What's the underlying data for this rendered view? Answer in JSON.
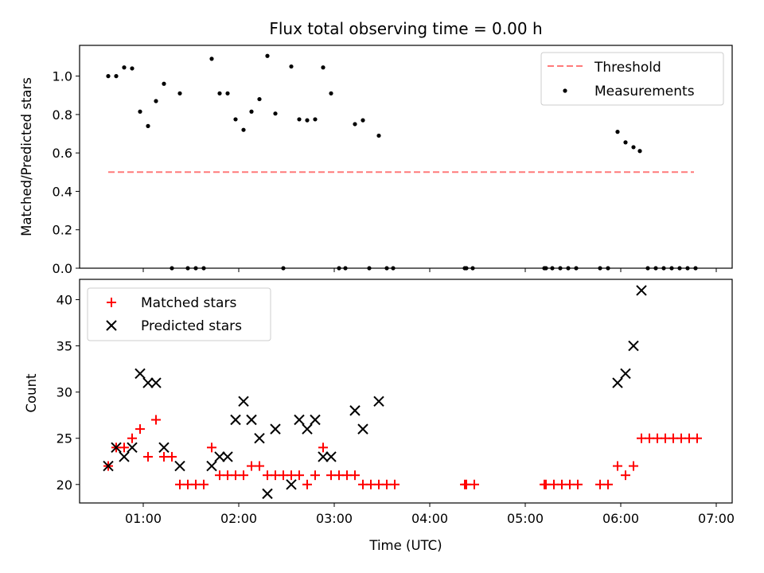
{
  "chart_data": [
    {
      "type": "scatter",
      "title": "Flux total observing time = 0.00 h",
      "xlabel": "",
      "ylabel": "Matched/Predicted stars",
      "ylim": [
        0,
        1.16
      ],
      "yticks": [
        "0.0",
        "0.2",
        "0.4",
        "0.6",
        "0.8",
        "1.0"
      ],
      "legend_position": "upper-right",
      "threshold": {
        "name": "Threshold",
        "value": 0.5,
        "x_start": "00:38",
        "x_end": "06:46",
        "color": "#ff7a7a"
      },
      "series": [
        {
          "name": "Measurements",
          "color": "#000000",
          "marker": "dot",
          "points": [
            [
              "00:38",
              1.0
            ],
            [
              "00:43",
              1.0
            ],
            [
              "00:48",
              1.045
            ],
            [
              "00:53",
              1.04
            ],
            [
              "00:58",
              0.815
            ],
            [
              "01:03",
              0.74
            ],
            [
              "01:08",
              0.87
            ],
            [
              "01:13",
              0.96
            ],
            [
              "01:18",
              0.0
            ],
            [
              "01:23",
              0.91
            ],
            [
              "01:28",
              0.0
            ],
            [
              "01:33",
              0.0
            ],
            [
              "01:38",
              0.0
            ],
            [
              "01:43",
              1.09
            ],
            [
              "01:48",
              0.91
            ],
            [
              "01:53",
              0.91
            ],
            [
              "01:58",
              0.775
            ],
            [
              "02:03",
              0.72
            ],
            [
              "02:08",
              0.815
            ],
            [
              "02:13",
              0.88
            ],
            [
              "02:18",
              1.105
            ],
            [
              "02:23",
              0.805
            ],
            [
              "02:28",
              0.0
            ],
            [
              "02:33",
              1.05
            ],
            [
              "02:38",
              0.775
            ],
            [
              "02:43",
              0.77
            ],
            [
              "02:48",
              0.775
            ],
            [
              "02:53",
              1.045
            ],
            [
              "02:58",
              0.91
            ],
            [
              "03:03",
              0.0
            ],
            [
              "03:07",
              0.0
            ],
            [
              "03:13",
              0.75
            ],
            [
              "03:18",
              0.77
            ],
            [
              "03:22",
              0.0
            ],
            [
              "03:28",
              0.69
            ],
            [
              "03:33",
              0.0
            ],
            [
              "03:37",
              0.0
            ],
            [
              "04:22",
              0.0
            ],
            [
              "04:23",
              0.0
            ],
            [
              "04:27",
              0.0
            ],
            [
              "05:12",
              0.0
            ],
            [
              "05:13",
              0.0
            ],
            [
              "05:17",
              0.0
            ],
            [
              "05:22",
              0.0
            ],
            [
              "05:27",
              0.0
            ],
            [
              "05:32",
              0.0
            ],
            [
              "05:47",
              0.0
            ],
            [
              "05:52",
              0.0
            ],
            [
              "05:58",
              0.71
            ],
            [
              "06:03",
              0.655
            ],
            [
              "06:08",
              0.63
            ],
            [
              "06:12",
              0.61
            ],
            [
              "06:17",
              0.0
            ],
            [
              "06:22",
              0.0
            ],
            [
              "06:27",
              0.0
            ],
            [
              "06:32",
              0.0
            ],
            [
              "06:37",
              0.0
            ],
            [
              "06:42",
              0.0
            ],
            [
              "06:47",
              0.0
            ]
          ]
        }
      ]
    },
    {
      "type": "scatter",
      "title": "",
      "xlabel": "Time (UTC)",
      "ylabel": "Count",
      "ylim": [
        18,
        42.2
      ],
      "yticks": [
        "20",
        "25",
        "30",
        "35",
        "40"
      ],
      "xlim": [
        "00:20",
        "07:10"
      ],
      "xticks": [
        "01:00",
        "02:00",
        "03:00",
        "04:00",
        "05:00",
        "06:00",
        "07:00"
      ],
      "legend_position": "upper-left",
      "series": [
        {
          "name": "Matched stars",
          "color": "#ff0000",
          "marker": "plus",
          "points": [
            [
              "00:38",
              22
            ],
            [
              "00:43",
              24
            ],
            [
              "00:48",
              24
            ],
            [
              "00:53",
              25
            ],
            [
              "00:58",
              26
            ],
            [
              "01:03",
              23
            ],
            [
              "01:08",
              27
            ],
            [
              "01:13",
              23
            ],
            [
              "01:18",
              23
            ],
            [
              "01:23",
              20
            ],
            [
              "01:28",
              20
            ],
            [
              "01:33",
              20
            ],
            [
              "01:38",
              20
            ],
            [
              "01:43",
              24
            ],
            [
              "01:48",
              21
            ],
            [
              "01:53",
              21
            ],
            [
              "01:58",
              21
            ],
            [
              "02:03",
              21
            ],
            [
              "02:08",
              22
            ],
            [
              "02:13",
              22
            ],
            [
              "02:18",
              21
            ],
            [
              "02:23",
              21
            ],
            [
              "02:28",
              21
            ],
            [
              "02:33",
              21
            ],
            [
              "02:38",
              21
            ],
            [
              "02:43",
              20
            ],
            [
              "02:48",
              21
            ],
            [
              "02:53",
              24
            ],
            [
              "02:58",
              21
            ],
            [
              "03:03",
              21
            ],
            [
              "03:08",
              21
            ],
            [
              "03:13",
              21
            ],
            [
              "03:18",
              20
            ],
            [
              "03:23",
              20
            ],
            [
              "03:28",
              20
            ],
            [
              "03:33",
              20
            ],
            [
              "03:38",
              20
            ],
            [
              "04:22",
              20
            ],
            [
              "04:23",
              20
            ],
            [
              "04:28",
              20
            ],
            [
              "05:12",
              20
            ],
            [
              "05:13",
              20
            ],
            [
              "05:18",
              20
            ],
            [
              "05:23",
              20
            ],
            [
              "05:28",
              20
            ],
            [
              "05:33",
              20
            ],
            [
              "05:47",
              20
            ],
            [
              "05:52",
              20
            ],
            [
              "05:58",
              22
            ],
            [
              "06:03",
              21
            ],
            [
              "06:08",
              22
            ],
            [
              "06:13",
              25
            ],
            [
              "06:18",
              25
            ],
            [
              "06:23",
              25
            ],
            [
              "06:28",
              25
            ],
            [
              "06:33",
              25
            ],
            [
              "06:38",
              25
            ],
            [
              "06:43",
              25
            ],
            [
              "06:48",
              25
            ]
          ]
        },
        {
          "name": "Predicted stars",
          "color": "#000000",
          "marker": "x",
          "points": [
            [
              "00:38",
              22
            ],
            [
              "00:43",
              24
            ],
            [
              "00:48",
              23
            ],
            [
              "00:53",
              24
            ],
            [
              "00:58",
              32
            ],
            [
              "01:03",
              31
            ],
            [
              "01:08",
              31
            ],
            [
              "01:13",
              24
            ],
            [
              "01:23",
              22
            ],
            [
              "01:43",
              22
            ],
            [
              "01:48",
              23
            ],
            [
              "01:53",
              23
            ],
            [
              "01:58",
              27
            ],
            [
              "02:03",
              29
            ],
            [
              "02:08",
              27
            ],
            [
              "02:13",
              25
            ],
            [
              "02:18",
              19
            ],
            [
              "02:23",
              26
            ],
            [
              "02:33",
              20
            ],
            [
              "02:38",
              27
            ],
            [
              "02:43",
              26
            ],
            [
              "02:48",
              27
            ],
            [
              "02:53",
              23
            ],
            [
              "02:58",
              23
            ],
            [
              "03:13",
              28
            ],
            [
              "03:18",
              26
            ],
            [
              "03:28",
              29
            ],
            [
              "05:58",
              31
            ],
            [
              "06:03",
              32
            ],
            [
              "06:08",
              35
            ],
            [
              "06:13",
              41
            ]
          ]
        }
      ]
    }
  ]
}
